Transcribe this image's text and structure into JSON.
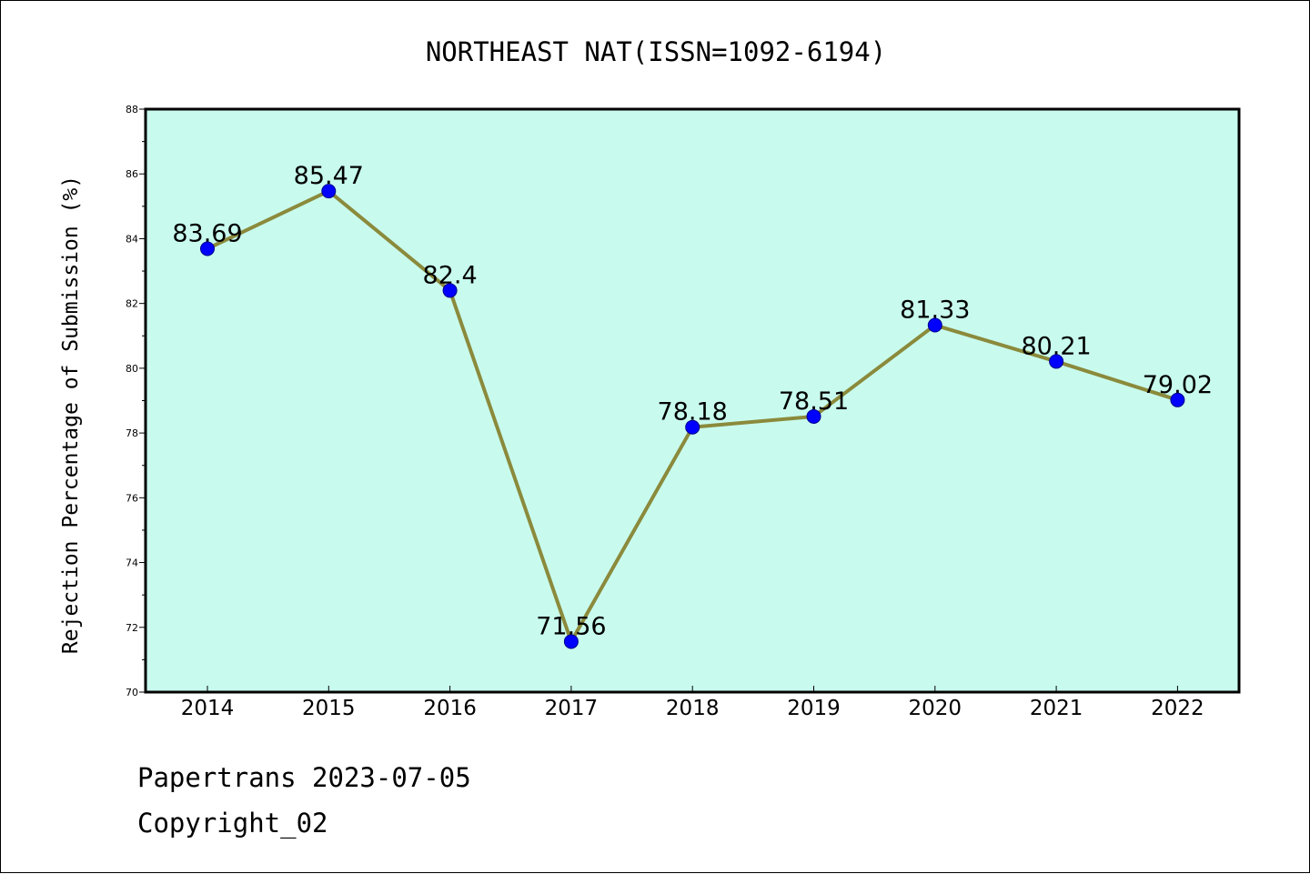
{
  "footer": {
    "line1": "Papertrans 2023-07-05",
    "line2": "Copyright_02"
  },
  "colors": {
    "plot_background": "#c8fbee",
    "line": "#8b8a3c",
    "marker": "#0000ff",
    "frame": "#000000"
  },
  "chart_data": {
    "type": "line",
    "title": "NORTHEAST NAT(ISSN=1092-6194)",
    "xlabel": "",
    "ylabel": "Rejection Percentage of Submission (%)",
    "categories": [
      "2014",
      "2015",
      "2016",
      "2017",
      "2018",
      "2019",
      "2020",
      "2021",
      "2022"
    ],
    "series": [
      {
        "values": [
          83.69,
          85.47,
          82.4,
          71.56,
          78.18,
          78.51,
          81.33,
          80.21,
          79.02
        ],
        "labels": [
          "83.69",
          "85.47",
          "82.4",
          "71.56",
          "78.18",
          "78.51",
          "81.33",
          "80.21",
          "79.02"
        ]
      }
    ],
    "ylim": [
      70,
      88
    ],
    "yticks": [
      "70",
      "72",
      "74",
      "76",
      "78",
      "80",
      "82",
      "84",
      "86",
      "88"
    ],
    "grid": false,
    "legend": "none"
  }
}
